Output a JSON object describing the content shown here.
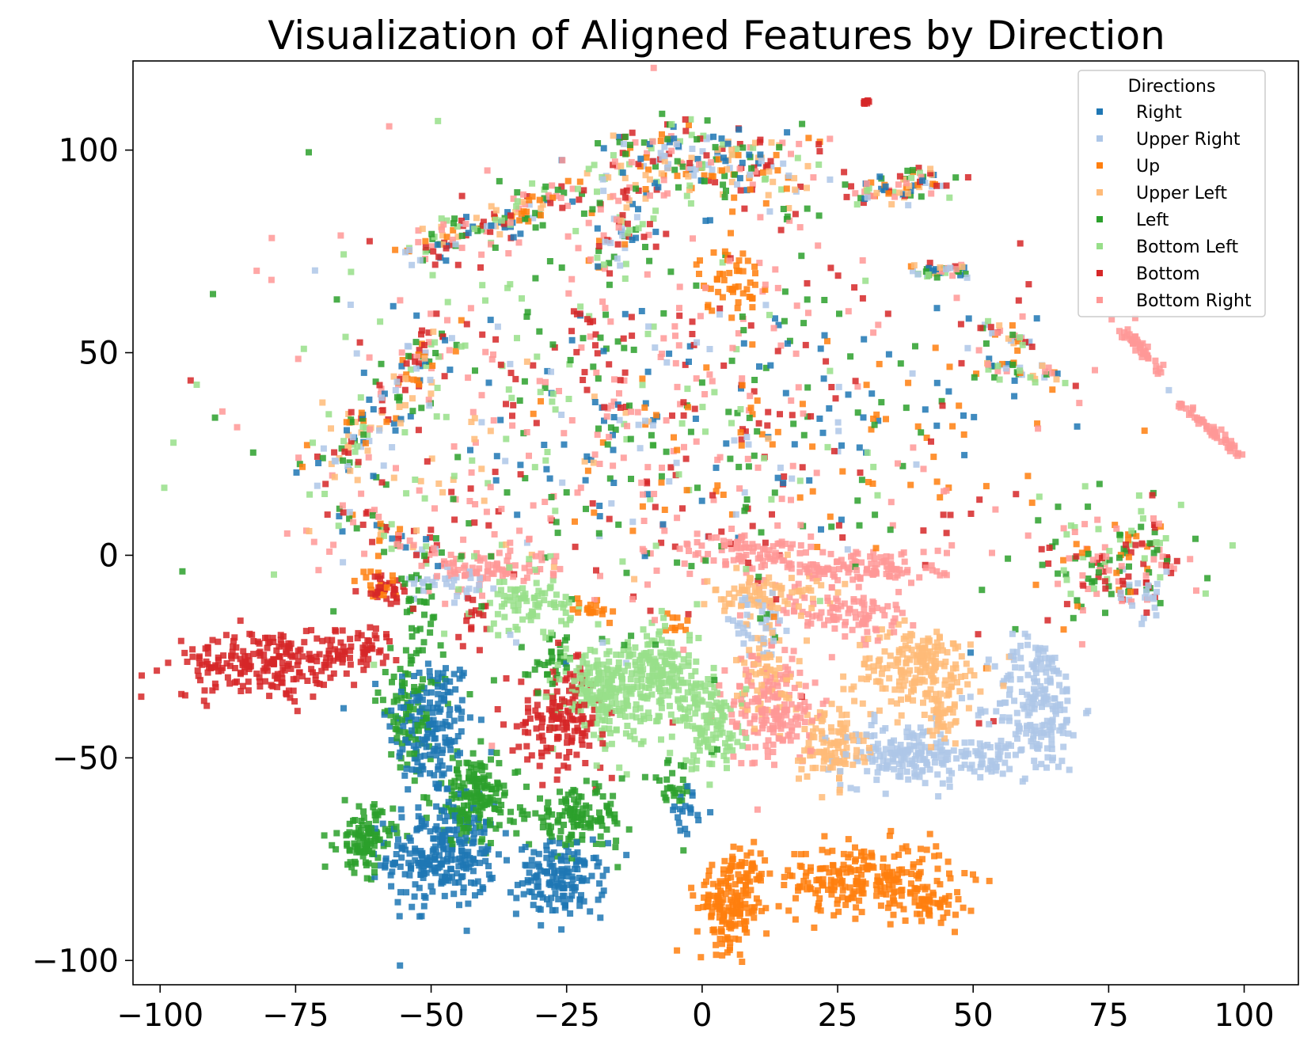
{
  "chart_data": {
    "type": "scatter",
    "title": "Visualization of Aligned Features by Direction",
    "xlabel": "",
    "ylabel": "",
    "xlim": [
      -105,
      110
    ],
    "ylim": [
      -106,
      122
    ],
    "x_ticks": [
      -100,
      -75,
      -50,
      -25,
      0,
      25,
      50,
      75,
      100
    ],
    "y_ticks": [
      -100,
      -50,
      0,
      50,
      100
    ],
    "x_tick_labels": [
      "−100",
      "−75",
      "−50",
      "−25",
      "0",
      "25",
      "50",
      "75",
      "100"
    ],
    "y_tick_labels": [
      "−100",
      "−50",
      "0",
      "50",
      "100"
    ],
    "grid": false,
    "legend": {
      "title": "Directions",
      "placement": "top-right"
    },
    "series": [
      {
        "name": "Right",
        "color": "#1f77b4",
        "clusters": [
          {
            "cx": -50,
            "cy": -42,
            "sx": 4.0,
            "sy": 9.0,
            "n": 170
          },
          {
            "cx": -48,
            "cy": -74,
            "sx": 5.0,
            "sy": 6.5,
            "n": 260
          },
          {
            "cx": -26,
            "cy": -80,
            "sx": 4.0,
            "sy": 4.5,
            "n": 150
          },
          {
            "cx": -3,
            "cy": -63,
            "sx": 1.5,
            "sy": 3.0,
            "n": 20
          },
          {
            "cx": -15,
            "cy": 35,
            "sx": 20,
            "sy": 16,
            "n": 60
          },
          {
            "cx": 25,
            "cy": 30,
            "sx": 18,
            "sy": 18,
            "n": 40
          }
        ]
      },
      {
        "name": "Upper Right",
        "color": "#aec7e8",
        "clusters": [
          {
            "cx": 10,
            "cy": -18,
            "sx": 4.0,
            "sy": 4.0,
            "n": 40
          },
          {
            "cx": 38,
            "cy": -49,
            "sx": 6.0,
            "sy": 4.0,
            "n": 170
          },
          {
            "cx": 62,
            "cy": -37,
            "sx": 4.0,
            "sy": 8.5,
            "n": 200
          },
          {
            "cx": 53,
            "cy": -50,
            "sx": 3.0,
            "sy": 2.5,
            "n": 40
          },
          {
            "cx": -45,
            "cy": -6,
            "sx": 4.0,
            "sy": 2.0,
            "n": 30
          },
          {
            "cx": 80,
            "cy": -10,
            "sx": 4.0,
            "sy": 3.0,
            "n": 20
          },
          {
            "cx": -10,
            "cy": 30,
            "sx": 30,
            "sy": 25,
            "n": 60
          }
        ]
      },
      {
        "name": "Up",
        "color": "#ff7f0e",
        "clusters": [
          {
            "cx": 5,
            "cy": -87,
            "sx": 3.0,
            "sy": 5.0,
            "n": 150
          },
          {
            "cx": 8,
            "cy": -78,
            "sx": 2.0,
            "sy": 4.0,
            "n": 40
          },
          {
            "cx": 30,
            "cy": -80,
            "sx": 8.0,
            "sy": 4.5,
            "n": 240
          },
          {
            "cx": 42,
            "cy": -86,
            "sx": 3.0,
            "sy": 2.0,
            "n": 40
          },
          {
            "cx": -20,
            "cy": -13,
            "sx": 2.0,
            "sy": 1.5,
            "n": 20
          },
          {
            "cx": -5,
            "cy": -17,
            "sx": 1.5,
            "sy": 1.5,
            "n": 10
          },
          {
            "cx": -60,
            "cy": -7,
            "sx": 2.0,
            "sy": 2.0,
            "n": 15
          },
          {
            "cx": 5,
            "cy": 68,
            "sx": 3.0,
            "sy": 4.0,
            "n": 50
          },
          {
            "cx": 20,
            "cy": 25,
            "sx": 25,
            "sy": 20,
            "n": 70
          },
          {
            "cx": 75,
            "cy": 0,
            "sx": 7.0,
            "sy": 7.0,
            "n": 20
          }
        ]
      },
      {
        "name": "Upper Left",
        "color": "#ffbb78",
        "clusters": [
          {
            "cx": 12,
            "cy": -10,
            "sx": 5.0,
            "sy": 2.5,
            "n": 80
          },
          {
            "cx": 12,
            "cy": -28,
            "sx": 3.0,
            "sy": 6.0,
            "n": 70
          },
          {
            "cx": 40,
            "cy": -28,
            "sx": 6.0,
            "sy": 5.0,
            "n": 200
          },
          {
            "cx": 24,
            "cy": -47,
            "sx": 3.0,
            "sy": 5.0,
            "n": 110
          },
          {
            "cx": 44,
            "cy": -40,
            "sx": 2.5,
            "sy": 4.0,
            "n": 40
          },
          {
            "cx": -35,
            "cy": 20,
            "sx": 20,
            "sy": 15,
            "n": 30
          }
        ]
      },
      {
        "name": "Left",
        "color": "#2ca02c",
        "clusters": [
          {
            "cx": -62,
            "cy": -70,
            "sx": 2.5,
            "sy": 4.0,
            "n": 110
          },
          {
            "cx": -42,
            "cy": -60,
            "sx": 4.0,
            "sy": 5.5,
            "n": 170
          },
          {
            "cx": -54,
            "cy": -38,
            "sx": 3.0,
            "sy": 7.0,
            "n": 90
          },
          {
            "cx": -23,
            "cy": -65,
            "sx": 4.5,
            "sy": 3.5,
            "n": 120
          },
          {
            "cx": -6,
            "cy": -57,
            "sx": 2.0,
            "sy": 3.0,
            "n": 25
          },
          {
            "cx": -52,
            "cy": -15,
            "sx": 2.0,
            "sy": 5.0,
            "n": 30
          },
          {
            "cx": -28,
            "cy": -26,
            "sx": 2.0,
            "sy": 3.5,
            "n": 30
          },
          {
            "cx": -10,
            "cy": 30,
            "sx": 32,
            "sy": 30,
            "n": 160
          },
          {
            "cx": 75,
            "cy": -2,
            "sx": 7.0,
            "sy": 7.0,
            "n": 50
          }
        ]
      },
      {
        "name": "Bottom Left",
        "color": "#98df8a",
        "clusters": [
          {
            "cx": -32,
            "cy": -12,
            "sx": 4.0,
            "sy": 3.0,
            "n": 80
          },
          {
            "cx": -18,
            "cy": -33,
            "sx": 4.0,
            "sy": 6.0,
            "n": 220
          },
          {
            "cx": -7,
            "cy": -30,
            "sx": 3.0,
            "sy": 6.0,
            "n": 160
          },
          {
            "cx": 2,
            "cy": -42,
            "sx": 3.0,
            "sy": 5.5,
            "n": 120
          },
          {
            "cx": -30,
            "cy": 30,
            "sx": 30,
            "sy": 28,
            "n": 110
          },
          {
            "cx": 75,
            "cy": 0,
            "sx": 7.0,
            "sy": 7.0,
            "n": 30
          }
        ]
      },
      {
        "name": "Bottom",
        "color": "#d62728",
        "clusters": [
          {
            "cx": -80,
            "cy": -27,
            "sx": 9.0,
            "sy": 4.0,
            "n": 220
          },
          {
            "cx": -64,
            "cy": -22,
            "sx": 4.0,
            "sy": 2.5,
            "n": 50
          },
          {
            "cx": -26,
            "cy": -40,
            "sx": 4.0,
            "sy": 6.0,
            "n": 150
          },
          {
            "cx": -58,
            "cy": -8,
            "sx": 2.5,
            "sy": 2.0,
            "n": 30
          },
          {
            "cx": -42,
            "cy": -15,
            "sx": 1.5,
            "sy": 3.0,
            "n": 15
          },
          {
            "cx": -10,
            "cy": 35,
            "sx": 32,
            "sy": 28,
            "n": 180
          },
          {
            "cx": 78,
            "cy": -5,
            "sx": 7.0,
            "sy": 6.0,
            "n": 40
          }
        ]
      },
      {
        "name": "Bottom Right",
        "color": "#ff9896",
        "clusters": [
          {
            "cx": -40,
            "cy": -3,
            "sx": 6.0,
            "sy": 2.5,
            "n": 80
          },
          {
            "cx": 8,
            "cy": 1,
            "sx": 6.0,
            "sy": 2.5,
            "n": 80
          },
          {
            "cx": 30,
            "cy": -3,
            "sx": 8.0,
            "sy": 2.5,
            "n": 120
          },
          {
            "cx": 27,
            "cy": -15,
            "sx": 6.0,
            "sy": 3.0,
            "n": 90
          },
          {
            "cx": 13,
            "cy": -38,
            "sx": 4.0,
            "sy": 7.0,
            "n": 170
          },
          {
            "cx": -15,
            "cy": 38,
            "sx": 32,
            "sy": 28,
            "n": 220
          },
          {
            "cx": 75,
            "cy": 0,
            "sx": 7.0,
            "sy": 7.0,
            "n": 40
          }
        ]
      }
    ],
    "strips": [
      {
        "from": [
          -54,
          74
        ],
        "to": [
          -25,
          89
        ],
        "w": 2.5,
        "n": 150,
        "mix": true
      },
      {
        "from": [
          -18,
          90
        ],
        "to": [
          -5,
          100
        ],
        "w": 5.0,
        "n": 120,
        "mix": true
      },
      {
        "from": [
          -5,
          100
        ],
        "to": [
          18,
          92
        ],
        "w": 5.0,
        "n": 160,
        "mix": true
      },
      {
        "from": [
          28,
          89
        ],
        "to": [
          44,
          93
        ],
        "w": 2.0,
        "n": 80,
        "mix": true
      },
      {
        "from": [
          -19,
          73
        ],
        "to": [
          -12,
          82
        ],
        "w": 2.0,
        "n": 40,
        "mix": true
      },
      {
        "from": [
          -70,
          20
        ],
        "to": [
          -45,
          58
        ],
        "w": 2.5,
        "n": 140,
        "mix": true
      },
      {
        "from": [
          -65,
          10
        ],
        "to": [
          -50,
          0
        ],
        "w": 2.5,
        "n": 60,
        "mix": true
      },
      {
        "from": [
          40,
          70
        ],
        "to": [
          48,
          70
        ],
        "w": 1.0,
        "n": 40,
        "mix": true
      },
      {
        "from": [
          78,
          55
        ],
        "to": [
          85,
          45
        ],
        "w": 0.6,
        "n": 40,
        "mix": false,
        "color": "#ff9896"
      },
      {
        "from": [
          88,
          38
        ],
        "to": [
          100,
          24
        ],
        "w": 0.6,
        "n": 50,
        "mix": false,
        "color": "#ff9896"
      },
      {
        "from": [
          52,
          56
        ],
        "to": [
          62,
          51
        ],
        "w": 1.0,
        "n": 30,
        "mix": true
      },
      {
        "from": [
          52,
          45
        ],
        "to": [
          65,
          45
        ],
        "w": 1.5,
        "n": 40,
        "mix": true
      },
      {
        "from": [
          30,
          112
        ],
        "to": [
          31,
          112
        ],
        "w": 0.4,
        "n": 8,
        "mix": false,
        "color": "#d62728"
      }
    ]
  }
}
